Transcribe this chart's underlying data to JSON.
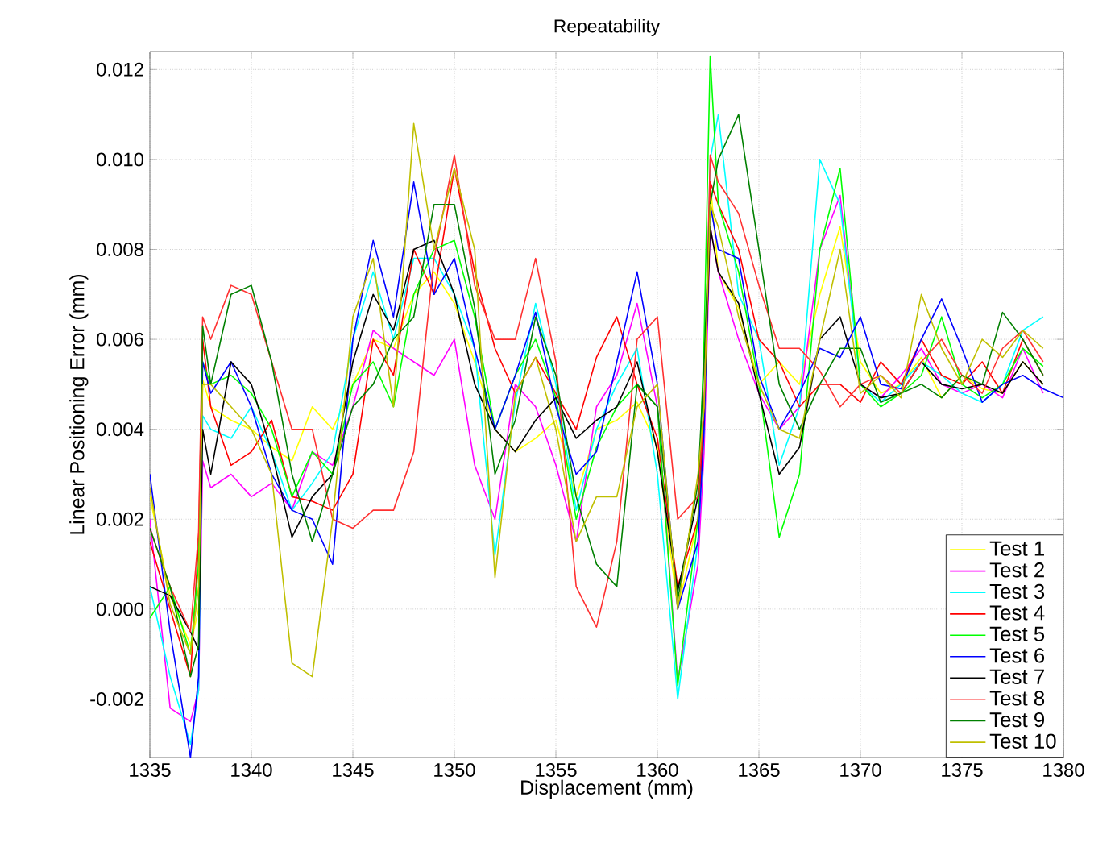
{
  "chart_data": {
    "type": "line",
    "title": "Repeatability",
    "xlabel": "Displacement (mm)",
    "ylabel": "Linear Positioning Error (mm)",
    "x": [
      1335,
      1336,
      1337,
      1337.4,
      1337.6,
      1338,
      1339,
      1340,
      1341,
      1342,
      1343,
      1344,
      1345,
      1346,
      1347,
      1348,
      1349,
      1350,
      1351,
      1352,
      1353,
      1354,
      1355,
      1356,
      1357,
      1358,
      1359,
      1360,
      1361,
      1362,
      1362.3,
      1362.6,
      1363,
      1364,
      1365,
      1366,
      1367,
      1368,
      1369,
      1370,
      1371,
      1372,
      1373,
      1374,
      1375,
      1376,
      1377,
      1378,
      1379,
      1380
    ],
    "xlim": [
      1335,
      1380
    ],
    "xticks": [
      1335,
      1340,
      1345,
      1350,
      1355,
      1360,
      1365,
      1370,
      1375,
      1380
    ],
    "ylim": [
      -0.0033,
      0.0124
    ],
    "yticks": [
      {
        "value": -0.002,
        "label": "-0.002"
      },
      {
        "value": 0,
        "label": "0.000"
      },
      {
        "value": 0.002,
        "label": "0.002"
      },
      {
        "value": 0.004,
        "label": "0.004"
      },
      {
        "value": 0.006,
        "label": "0.006"
      },
      {
        "value": 0.008,
        "label": "0.008"
      },
      {
        "value": 0.01,
        "label": "0.010"
      },
      {
        "value": 0.012,
        "label": "0.012"
      }
    ],
    "grid": true,
    "legend": "bottom right",
    "line_style": "solid",
    "series": [
      {
        "name": "Test 1",
        "color": "#ffff00",
        "values": [
          0.0025,
          0.0003,
          -0.0008,
          0.0,
          0.0051,
          0.0045,
          0.0042,
          0.004,
          0.0036,
          0.0033,
          0.0045,
          0.004,
          0.005,
          0.006,
          0.0058,
          0.007,
          0.0075,
          0.0068,
          0.0055,
          0.004,
          0.0035,
          0.0038,
          0.0042,
          0.0025,
          0.004,
          0.0042,
          0.0046,
          0.0036,
          0.0,
          0.002,
          0.004,
          0.0095,
          0.0075,
          0.0067,
          0.005,
          0.0055,
          0.005,
          0.007,
          0.0085,
          0.0055,
          0.0048,
          0.005,
          0.0056,
          0.0047,
          0.0052,
          0.0049,
          0.0048,
          0.0055,
          0.005,
          null
        ]
      },
      {
        "name": "Test 2",
        "color": "#ff00ff",
        "values": [
          0.002,
          -0.0022,
          -0.0025,
          -0.0018,
          0.0033,
          0.0027,
          0.003,
          0.0025,
          0.0028,
          0.0022,
          0.0035,
          0.0032,
          0.0045,
          0.0062,
          0.0058,
          0.0055,
          0.0052,
          0.006,
          0.0032,
          0.002,
          0.005,
          0.0045,
          0.0032,
          0.0015,
          0.0045,
          0.0052,
          0.0068,
          0.0045,
          -0.0016,
          0.001,
          0.0035,
          0.0085,
          0.0075,
          0.006,
          0.0048,
          0.004,
          0.0045,
          0.008,
          0.0092,
          0.005,
          0.0047,
          0.0052,
          0.0058,
          0.005,
          0.0048,
          0.005,
          0.0047,
          0.0058,
          0.0048,
          null
        ]
      },
      {
        "name": "Test 3",
        "color": "#00ffff",
        "values": [
          0.0005,
          -0.0015,
          -0.003,
          -0.0018,
          0.0043,
          0.004,
          0.0038,
          0.0045,
          0.0035,
          0.0022,
          0.0028,
          0.0035,
          0.006,
          0.0075,
          0.006,
          0.0078,
          0.0078,
          0.007,
          0.0058,
          0.0012,
          0.0046,
          0.0068,
          0.005,
          0.0022,
          0.004,
          0.005,
          0.0058,
          0.003,
          -0.002,
          0.0015,
          0.004,
          0.01,
          0.011,
          0.007,
          0.006,
          0.0032,
          0.0045,
          0.01,
          0.009,
          0.005,
          0.0046,
          0.005,
          0.0055,
          0.0052,
          0.0048,
          0.0046,
          0.005,
          0.0062,
          0.0065,
          null
        ]
      },
      {
        "name": "Test 4",
        "color": "#ff0000",
        "values": [
          0.0015,
          0.0,
          -0.0015,
          0.0015,
          0.006,
          0.0045,
          0.0032,
          0.0035,
          0.0042,
          0.0025,
          0.0024,
          0.0022,
          0.003,
          0.006,
          0.0052,
          0.008,
          0.007,
          0.0098,
          0.0075,
          0.0058,
          0.0048,
          0.0056,
          0.0048,
          0.004,
          0.0056,
          0.0065,
          0.005,
          0.0038,
          0.0005,
          0.002,
          0.0042,
          0.0095,
          0.009,
          0.008,
          0.006,
          0.0055,
          0.0045,
          0.005,
          0.005,
          0.0046,
          0.0055,
          0.005,
          0.006,
          0.0052,
          0.005,
          0.0055,
          0.0048,
          0.006,
          0.0052,
          null
        ]
      },
      {
        "name": "Test 5",
        "color": "#00ff00",
        "values": [
          -0.0002,
          0.0005,
          -0.001,
          0.001,
          0.0055,
          0.005,
          0.0052,
          0.0048,
          0.004,
          0.0025,
          0.0035,
          0.003,
          0.005,
          0.0055,
          0.0045,
          0.007,
          0.008,
          0.0082,
          0.0065,
          0.004,
          0.0052,
          0.006,
          0.0047,
          0.002,
          0.0036,
          0.0045,
          0.005,
          0.0045,
          -0.0017,
          0.002,
          0.006,
          0.0123,
          0.009,
          0.0075,
          0.005,
          0.0016,
          0.003,
          0.008,
          0.0098,
          0.005,
          0.0045,
          0.0048,
          0.0052,
          0.0065,
          0.005,
          0.0047,
          0.005,
          0.0058,
          0.0054,
          null
        ]
      },
      {
        "name": "Test 6",
        "color": "#0000ff",
        "values": [
          0.003,
          -0.0005,
          -0.0033,
          -0.0015,
          0.0055,
          0.0048,
          0.0055,
          0.0045,
          0.003,
          0.0022,
          0.002,
          0.001,
          0.006,
          0.0082,
          0.0065,
          0.0095,
          0.007,
          0.0078,
          0.0058,
          0.004,
          0.0052,
          0.0066,
          0.0045,
          0.003,
          0.0035,
          0.0055,
          0.0075,
          0.005,
          0.0,
          0.0015,
          0.004,
          0.009,
          0.008,
          0.0078,
          0.0052,
          0.004,
          0.0048,
          0.0058,
          0.0056,
          0.0065,
          0.005,
          0.0049,
          0.006,
          0.0069,
          0.0058,
          0.0046,
          0.005,
          0.0052,
          0.0049,
          0.0047
        ]
      },
      {
        "name": "Test 7",
        "color": "#000000",
        "values": [
          0.0005,
          0.0003,
          -0.0005,
          -0.0009,
          0.004,
          0.003,
          0.0055,
          0.005,
          0.0035,
          0.0016,
          0.0025,
          0.003,
          0.0055,
          0.007,
          0.0062,
          0.008,
          0.0082,
          0.007,
          0.005,
          0.004,
          0.0035,
          0.0042,
          0.0047,
          0.0038,
          0.0042,
          0.0045,
          0.0055,
          0.0035,
          0.0004,
          0.0025,
          0.0045,
          0.0085,
          0.0075,
          0.0068,
          0.0048,
          0.003,
          0.0036,
          0.006,
          0.0065,
          0.005,
          0.0047,
          0.0048,
          0.0055,
          0.005,
          0.0049,
          0.005,
          0.0048,
          0.0055,
          0.005,
          null
        ]
      },
      {
        "name": "Test 8",
        "color": "#ff3030",
        "values": [
          0.0018,
          0.0005,
          -0.0005,
          0.0017,
          0.0065,
          0.006,
          0.0072,
          0.007,
          0.0055,
          0.004,
          0.004,
          0.002,
          0.0018,
          0.0022,
          0.0022,
          0.0035,
          0.0078,
          0.0101,
          0.0072,
          0.006,
          0.006,
          0.0078,
          0.0055,
          0.0005,
          -0.0004,
          0.0015,
          0.006,
          0.0065,
          0.002,
          0.0025,
          0.0045,
          0.0101,
          0.0095,
          0.0088,
          0.0072,
          0.0058,
          0.0058,
          0.0053,
          0.0045,
          0.005,
          0.0052,
          0.0048,
          0.0055,
          0.006,
          0.0052,
          0.0048,
          0.0058,
          0.0062,
          0.0055,
          null
        ]
      },
      {
        "name": "Test 9",
        "color": "#008000",
        "values": [
          0.0018,
          0.0005,
          -0.0015,
          -0.0008,
          0.0063,
          0.005,
          0.007,
          0.0072,
          0.0055,
          0.003,
          0.0015,
          0.003,
          0.0045,
          0.005,
          0.006,
          0.0065,
          0.009,
          0.009,
          0.0067,
          0.003,
          0.0042,
          0.0065,
          0.0052,
          0.0025,
          0.001,
          0.0005,
          0.005,
          0.0045,
          0.0002,
          0.0028,
          0.0055,
          0.009,
          0.01,
          0.011,
          0.008,
          0.005,
          0.004,
          0.005,
          0.0058,
          0.0058,
          0.0046,
          0.0048,
          0.005,
          0.0047,
          0.0052,
          0.005,
          0.0066,
          0.006,
          0.0052,
          null
        ]
      },
      {
        "name": "Test 10",
        "color": "#bfbf00",
        "values": [
          0.0027,
          0.0001,
          -0.001,
          0.0005,
          0.005,
          0.005,
          0.0045,
          0.004,
          0.003,
          -0.0012,
          -0.0015,
          0.002,
          0.0065,
          0.0078,
          0.0045,
          0.0108,
          0.008,
          0.0098,
          0.008,
          0.0007,
          0.0048,
          0.0056,
          0.004,
          0.0015,
          0.0025,
          0.0025,
          0.0045,
          0.005,
          0.0,
          0.003,
          0.0045,
          0.009,
          0.0085,
          0.0065,
          0.005,
          0.004,
          0.0038,
          0.006,
          0.008,
          0.0048,
          0.0052,
          0.0047,
          0.007,
          0.0058,
          0.005,
          0.006,
          0.0056,
          0.0062,
          0.0058,
          null
        ]
      }
    ]
  }
}
